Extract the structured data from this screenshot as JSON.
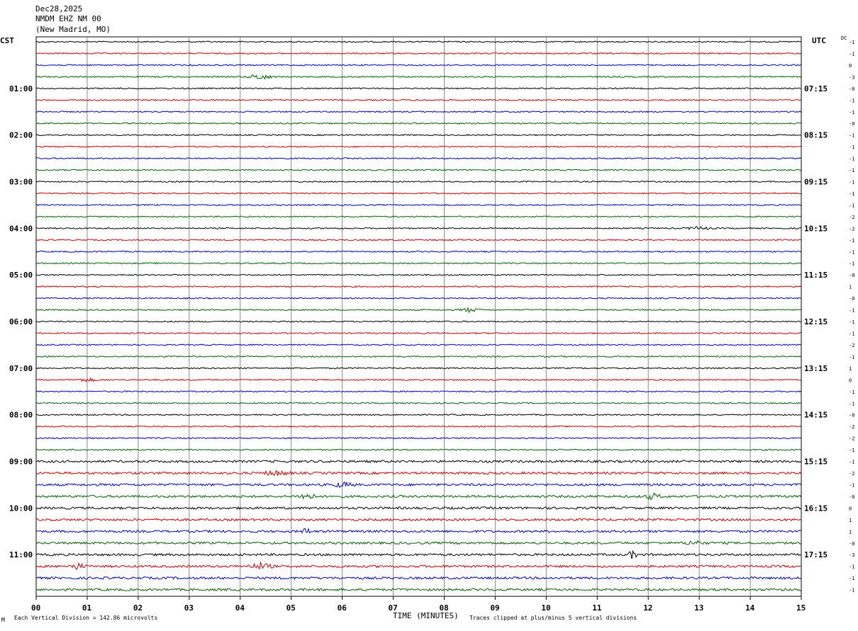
{
  "header": {
    "date": "Dec28,2025",
    "station": "NMDM EHZ NM 00",
    "location": "(New Madrid, MO)"
  },
  "left_zone_label": "CST",
  "right_zone_label": "UTC",
  "dc_label": "DC",
  "footer": {
    "scale": "Each Vertical Division =  142.86 microvolts",
    "clip": "Traces clipped at plus/minus 5 vertical divisions",
    "corner_mark": "M"
  },
  "colors": {
    "c0": "#000000",
    "c1": "#d40000",
    "c2": "#0000c8",
    "c3": "#006400",
    "grid": "#888888"
  },
  "chart_data": {
    "type": "line",
    "title": "",
    "xlabel": "TIME (MINUTES)",
    "ylabel": "",
    "xlim": [
      0,
      15
    ],
    "x_ticks": [
      "00",
      "01",
      "02",
      "03",
      "04",
      "05",
      "06",
      "07",
      "08",
      "09",
      "10",
      "11",
      "12",
      "13",
      "14",
      "15"
    ],
    "grid": "vertical every minute",
    "trace_count": 48,
    "left_hour_labels": [
      "01:00",
      "02:00",
      "03:00",
      "04:00",
      "05:00",
      "06:00",
      "07:00",
      "08:00",
      "09:00",
      "10:00",
      "11:00"
    ],
    "right_hour_labels": [
      "07:15",
      "08:15",
      "09:15",
      "10:15",
      "11:15",
      "12:15",
      "13:15",
      "14:15",
      "15:15",
      "16:15",
      "17:15"
    ],
    "dc_offsets": [
      "-1",
      "-1",
      "0",
      "-3",
      "-0",
      "-1",
      "-1",
      "-0",
      "-1",
      "-1",
      "-1",
      "-1",
      "-1",
      "-1",
      "-1",
      "-2",
      "-2",
      "-1",
      "-1",
      "-1",
      "-0",
      "1",
      "-0",
      "-1",
      "-1",
      "-1",
      "-2",
      "-1",
      "1",
      "0",
      "-1",
      "-1",
      "-0",
      "-2",
      "-2",
      "-1",
      "-1",
      "-2",
      "-1",
      "-0",
      "0",
      "1",
      "1",
      "-0",
      "-3",
      "-1",
      "-1",
      "-1"
    ],
    "color_cycle": [
      "black",
      "red",
      "blue",
      "green"
    ],
    "events": [
      {
        "trace": 3,
        "minute": 4.4,
        "width": 0.6,
        "amp": 4
      },
      {
        "trace": 16,
        "minute": 13.0,
        "width": 0.7,
        "amp": 2
      },
      {
        "trace": 23,
        "minute": 8.5,
        "width": 0.5,
        "amp": 3
      },
      {
        "trace": 29,
        "minute": 1.0,
        "width": 0.6,
        "amp": 2
      },
      {
        "trace": 37,
        "minute": 4.7,
        "width": 0.7,
        "amp": 3
      },
      {
        "trace": 38,
        "minute": 6.0,
        "width": 0.6,
        "amp": 3
      },
      {
        "trace": 39,
        "minute": 5.3,
        "width": 0.4,
        "amp": 5
      },
      {
        "trace": 39,
        "minute": 12.1,
        "width": 0.4,
        "amp": 4
      },
      {
        "trace": 42,
        "minute": 5.3,
        "width": 0.3,
        "amp": 4
      },
      {
        "trace": 43,
        "minute": 12.9,
        "width": 0.5,
        "amp": 3
      },
      {
        "trace": 44,
        "minute": 11.7,
        "width": 0.3,
        "amp": 5
      },
      {
        "trace": 45,
        "minute": 0.8,
        "width": 0.4,
        "amp": 4
      },
      {
        "trace": 45,
        "minute": 4.4,
        "width": 0.6,
        "amp": 4
      }
    ]
  }
}
